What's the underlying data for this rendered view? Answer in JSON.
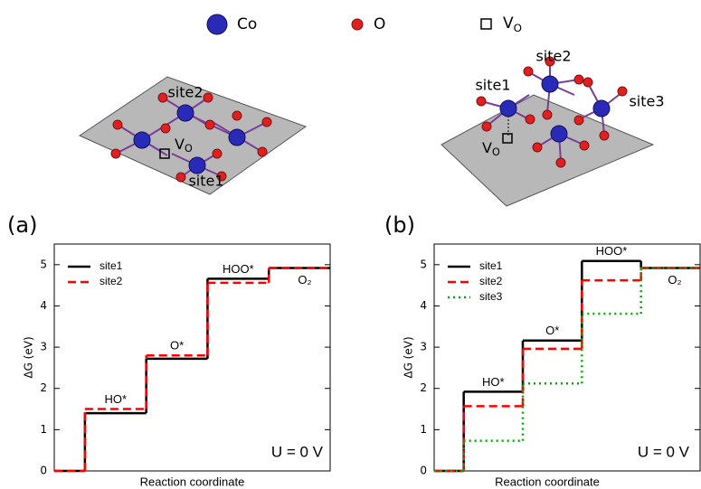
{
  "legend": {
    "items": [
      {
        "label": "Co",
        "color": "#2a2ab8"
      },
      {
        "label": "O",
        "color": "#e02020"
      },
      {
        "label": "V",
        "sub": "O"
      }
    ]
  },
  "structures": [
    {
      "sites": [
        "site2",
        "site1"
      ],
      "vacancy": {
        "label": "V",
        "sub": "O"
      }
    },
    {
      "sites": [
        "site1",
        "site2",
        "site3"
      ],
      "vacancy": {
        "label": "V",
        "sub": "O"
      }
    }
  ],
  "chart_data": [
    {
      "type": "step",
      "panel": "(a)",
      "xlabel": "Reaction coordinate",
      "ylabel": "ΔG (eV)",
      "categories": [
        null,
        "HO*",
        "O*",
        "HOO*",
        "O₂"
      ],
      "series": [
        {
          "name": "site1",
          "color": "#000000",
          "style": "solid",
          "values": [
            0,
            1.4,
            2.72,
            4.66,
            4.92
          ]
        },
        {
          "name": "site2",
          "color": "#ff0000",
          "style": "dashed",
          "values": [
            0,
            1.5,
            2.8,
            4.56,
            4.92
          ]
        }
      ],
      "ylim": [
        0,
        5.5
      ],
      "yticks": [
        0,
        1,
        2,
        3,
        4,
        5
      ],
      "legend": "upper left",
      "annotation": "U = 0 V"
    },
    {
      "type": "step",
      "panel": "(b)",
      "xlabel": "Reaction coordinate",
      "ylabel": "ΔG (eV)",
      "categories": [
        null,
        "HO*",
        "O*",
        "HOO*",
        "O₂"
      ],
      "series": [
        {
          "name": "site1",
          "color": "#000000",
          "style": "solid",
          "values": [
            0,
            1.92,
            3.16,
            5.09,
            4.92
          ]
        },
        {
          "name": "site2",
          "color": "#ff0000",
          "style": "dashed",
          "values": [
            0,
            1.57,
            2.96,
            4.62,
            4.92
          ]
        },
        {
          "name": "site3",
          "color": "#00aa00",
          "style": "dotted",
          "values": [
            0,
            0.73,
            2.12,
            3.81,
            4.92
          ]
        }
      ],
      "ylim": [
        0,
        5.5
      ],
      "yticks": [
        0,
        1,
        2,
        3,
        4,
        5
      ],
      "legend": "upper left",
      "annotation": "U = 0 V"
    }
  ]
}
